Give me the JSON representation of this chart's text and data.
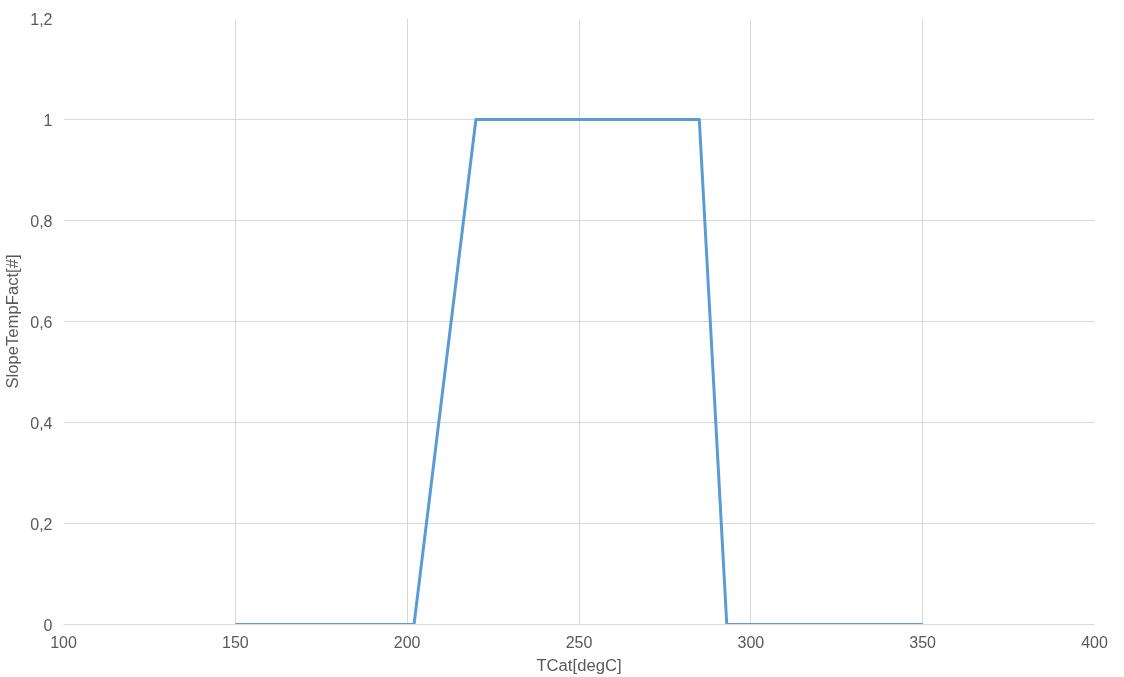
{
  "chart_data": {
    "type": "line",
    "xlabel": "TCat[degC]",
    "ylabel": "SlopeTempFact[#]",
    "x": [
      150,
      202,
      220,
      285,
      293,
      350
    ],
    "series": [
      {
        "color": "#5b9bd5",
        "values": [
          0,
          0,
          1,
          1,
          0,
          0
        ]
      }
    ],
    "xlim": [
      100,
      400
    ],
    "xticks": [
      100,
      150,
      200,
      250,
      300,
      350,
      400
    ],
    "ylim": [
      0,
      1.2
    ],
    "yticks": [
      0,
      {
        "value": 0.2,
        "label": "0,2"
      },
      {
        "value": 0.4,
        "label": "0,4"
      },
      {
        "value": 0.6,
        "label": "0,6"
      },
      {
        "value": 0.8,
        "label": "0,8"
      },
      1,
      {
        "value": 1.2,
        "label": "1,2"
      }
    ],
    "grid": true,
    "marker": "none",
    "line_style": "solid"
  }
}
